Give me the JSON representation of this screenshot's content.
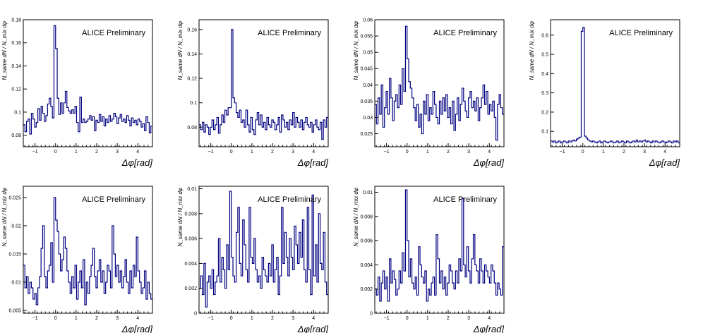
{
  "chart_data": [
    {
      "type": "line",
      "panel": 1,
      "annotation": "ALICE Preliminary",
      "xlabel": "Δφ[rad]",
      "ylabel": "N_same dN / N_mix dφ",
      "xlim": [
        -1.5708,
        4.7124
      ],
      "ylim": [
        0.07,
        0.18
      ],
      "xticks": [
        "−1",
        "0",
        "1",
        "2",
        "3",
        "4"
      ],
      "yticks": [
        0.08,
        0.1,
        0.12,
        0.14,
        0.16,
        0.18
      ],
      "ytick_labels": [
        "0.08",
        "0.1",
        "0.12",
        "0.14",
        "0.16",
        "0.18"
      ],
      "values": [
        0.089,
        0.083,
        0.092,
        0.094,
        0.081,
        0.099,
        0.094,
        0.087,
        0.091,
        0.103,
        0.093,
        0.105,
        0.099,
        0.092,
        0.097,
        0.107,
        0.112,
        0.105,
        0.095,
        0.175,
        0.155,
        0.112,
        0.098,
        0.108,
        0.099,
        0.108,
        0.118,
        0.104,
        0.101,
        0.099,
        0.102,
        0.099,
        0.105,
        0.091,
        0.083,
        0.113,
        0.091,
        0.094,
        0.091,
        0.092,
        0.094,
        0.097,
        0.093,
        0.096,
        0.084,
        0.093,
        0.091,
        0.098,
        0.092,
        0.096,
        0.088,
        0.094,
        0.091,
        0.097,
        0.092,
        0.094,
        0.099,
        0.096,
        0.09,
        0.095,
        0.098,
        0.092,
        0.094,
        0.091,
        0.097,
        0.093,
        0.088,
        0.095,
        0.091,
        0.093,
        0.089,
        0.094,
        0.092,
        0.087,
        0.09,
        0.084,
        0.096,
        0.091,
        0.082,
        0.088
      ]
    },
    {
      "type": "line",
      "panel": 2,
      "annotation": "ALICE Preliminary",
      "xlabel": "Δφ[rad]",
      "ylabel": "N_same dN / N_mix dφ",
      "xlim": [
        -1.5708,
        4.7124
      ],
      "ylim": [
        0.064,
        0.168
      ],
      "xticks": [
        "−1",
        "0",
        "1",
        "2",
        "3",
        "4"
      ],
      "yticks": [
        0.08,
        0.1,
        0.12,
        0.14,
        0.16
      ],
      "ytick_labels": [
        "0.08",
        "0.1",
        "0.12",
        "0.14",
        "0.16"
      ],
      "values": [
        0.082,
        0.078,
        0.084,
        0.076,
        0.082,
        0.08,
        0.074,
        0.08,
        0.086,
        0.078,
        0.082,
        0.088,
        0.075,
        0.082,
        0.09,
        0.084,
        0.094,
        0.09,
        0.096,
        0.096,
        0.16,
        0.104,
        0.1,
        0.092,
        0.088,
        0.094,
        0.084,
        0.086,
        0.08,
        0.094,
        0.082,
        0.076,
        0.088,
        0.078,
        0.074,
        0.086,
        0.092,
        0.082,
        0.09,
        0.08,
        0.084,
        0.078,
        0.088,
        0.082,
        0.08,
        0.086,
        0.084,
        0.078,
        0.082,
        0.088,
        0.076,
        0.09,
        0.086,
        0.08,
        0.084,
        0.078,
        0.086,
        0.082,
        0.092,
        0.08,
        0.088,
        0.084,
        0.08,
        0.086,
        0.078,
        0.084,
        0.088,
        0.082,
        0.08,
        0.084,
        0.076,
        0.082,
        0.086,
        0.08,
        0.078,
        0.084,
        0.07,
        0.086,
        0.08,
        0.088
      ]
    },
    {
      "type": "line",
      "panel": 3,
      "annotation": "ALICE Preliminary",
      "xlabel": "Δφ[rad]",
      "ylabel": "N_same dN / N_mix dφ",
      "xlim": [
        -1.5708,
        4.7124
      ],
      "ylim": [
        0.021,
        0.06
      ],
      "xticks": [
        "−1",
        "0",
        "1",
        "2",
        "3",
        "4"
      ],
      "yticks": [
        0.025,
        0.03,
        0.035,
        0.04,
        0.045,
        0.05,
        0.055,
        0.06
      ],
      "ytick_labels": [
        "0.025",
        "0.03",
        "0.035",
        "0.04",
        "0.045",
        "0.05",
        "0.055",
        "0.06"
      ],
      "values": [
        0.034,
        0.028,
        0.036,
        0.031,
        0.04,
        0.027,
        0.033,
        0.038,
        0.031,
        0.042,
        0.036,
        0.029,
        0.035,
        0.037,
        0.033,
        0.04,
        0.034,
        0.045,
        0.038,
        0.058,
        0.048,
        0.041,
        0.039,
        0.036,
        0.033,
        0.029,
        0.034,
        0.027,
        0.031,
        0.025,
        0.035,
        0.031,
        0.037,
        0.029,
        0.033,
        0.031,
        0.038,
        0.034,
        0.03,
        0.028,
        0.035,
        0.031,
        0.036,
        0.032,
        0.037,
        0.03,
        0.033,
        0.028,
        0.035,
        0.026,
        0.031,
        0.036,
        0.029,
        0.034,
        0.039,
        0.035,
        0.032,
        0.03,
        0.036,
        0.038,
        0.033,
        0.035,
        0.032,
        0.036,
        0.029,
        0.033,
        0.036,
        0.04,
        0.034,
        0.038,
        0.031,
        0.034,
        0.032,
        0.035,
        0.03,
        0.023,
        0.034,
        0.037,
        0.033,
        0.031
      ]
    },
    {
      "type": "line",
      "panel": 4,
      "annotation": "ALICE Preliminary",
      "xlabel": "Δφ[rad]",
      "ylabel": "N_same dN / N_mix dφ",
      "xlim": [
        -1.5708,
        4.7124
      ],
      "ylim": [
        0.02,
        0.68
      ],
      "xticks": [
        "−1",
        "0",
        "1",
        "2",
        "3",
        "4"
      ],
      "yticks": [
        0.1,
        0.2,
        0.3,
        0.4,
        0.5,
        0.6
      ],
      "ytick_labels": [
        "0.1",
        "0.2",
        "0.3",
        "0.4",
        "0.5",
        "0.6"
      ],
      "values": [
        0.05,
        0.045,
        0.05,
        0.04,
        0.045,
        0.05,
        0.04,
        0.045,
        0.05,
        0.045,
        0.04,
        0.05,
        0.045,
        0.05,
        0.055,
        0.05,
        0.06,
        0.065,
        0.07,
        0.62,
        0.64,
        0.075,
        0.065,
        0.055,
        0.05,
        0.045,
        0.05,
        0.045,
        0.04,
        0.045,
        0.05,
        0.04,
        0.045,
        0.05,
        0.045,
        0.04,
        0.045,
        0.05,
        0.045,
        0.04,
        0.045,
        0.05,
        0.04,
        0.045,
        0.05,
        0.045,
        0.04,
        0.05,
        0.045,
        0.04,
        0.045,
        0.05,
        0.045,
        0.055,
        0.045,
        0.05,
        0.045,
        0.05,
        0.055,
        0.045,
        0.05,
        0.045,
        0.04,
        0.05,
        0.045,
        0.05,
        0.045,
        0.04,
        0.045,
        0.05,
        0.045,
        0.04,
        0.045,
        0.05,
        0.045,
        0.04,
        0.05,
        0.045,
        0.05,
        0.04
      ]
    },
    {
      "type": "line",
      "panel": 5,
      "annotation": "ALICE Preliminary",
      "xlabel": "Δφ[rad]",
      "ylabel": "N_same dN / N_mix dφ",
      "xlim": [
        -1.5708,
        4.7124
      ],
      "ylim": [
        0.0045,
        0.027
      ],
      "xticks": [
        "−1",
        "0",
        "1",
        "2",
        "3",
        "4"
      ],
      "yticks": [
        0.005,
        0.01,
        0.015,
        0.02,
        0.025
      ],
      "ytick_labels": [
        "0.005",
        "0.01",
        "0.015",
        "0.02",
        "0.025"
      ],
      "values": [
        0.013,
        0.009,
        0.011,
        0.008,
        0.01,
        0.009,
        0.007,
        0.008,
        0.006,
        0.009,
        0.011,
        0.016,
        0.02,
        0.011,
        0.009,
        0.012,
        0.013,
        0.017,
        0.01,
        0.025,
        0.021,
        0.019,
        0.015,
        0.012,
        0.014,
        0.018,
        0.016,
        0.012,
        0.01,
        0.008,
        0.011,
        0.009,
        0.013,
        0.007,
        0.01,
        0.012,
        0.009,
        0.014,
        0.006,
        0.01,
        0.008,
        0.011,
        0.013,
        0.016,
        0.011,
        0.009,
        0.012,
        0.014,
        0.01,
        0.012,
        0.008,
        0.01,
        0.013,
        0.012,
        0.009,
        0.02,
        0.015,
        0.011,
        0.013,
        0.01,
        0.012,
        0.009,
        0.011,
        0.014,
        0.01,
        0.008,
        0.012,
        0.009,
        0.013,
        0.011,
        0.018,
        0.012,
        0.01,
        0.008,
        0.009,
        0.012,
        0.007,
        0.01,
        0.008,
        0.007
      ]
    },
    {
      "type": "line",
      "panel": 6,
      "annotation": "ALICE Preliminary",
      "xlabel": "Δφ[rad]",
      "ylabel": "N_same dN / N_mix dφ",
      "xlim": [
        -1.5708,
        4.7124
      ],
      "ylim": [
        0,
        0.0102
      ],
      "xticks": [
        "−1",
        "0",
        "1",
        "2",
        "3",
        "4"
      ],
      "yticks": [
        0,
        0.002,
        0.004,
        0.006,
        0.008,
        0.01
      ],
      "ytick_labels": [
        "0",
        "0.002",
        "0.004",
        "0.006",
        "0.008",
        "0.01"
      ],
      "values": [
        0.002,
        0.003,
        0.0015,
        0.004,
        0.0005,
        0.0025,
        0.003,
        0.002,
        0.0035,
        0.0015,
        0.0025,
        0.003,
        0.006,
        0.0025,
        0.0045,
        0.0035,
        0.002,
        0.0055,
        0.0035,
        0.0098,
        0.0045,
        0.003,
        0.0025,
        0.0065,
        0.0085,
        0.004,
        0.003,
        0.0075,
        0.0055,
        0.0035,
        0.0025,
        0.0085,
        0.0045,
        0.004,
        0.006,
        0.0035,
        0.0025,
        0.003,
        0.002,
        0.0045,
        0.0035,
        0.003,
        0.0025,
        0.004,
        0.003,
        0.0055,
        0.0025,
        0.0035,
        0.0045,
        0.0015,
        0.003,
        0.0085,
        0.004,
        0.0065,
        0.0045,
        0.003,
        0.006,
        0.0045,
        0.0035,
        0.007,
        0.0055,
        0.004,
        0.0065,
        0.0045,
        0.0075,
        0.0035,
        0.0025,
        0.0085,
        0.0035,
        0.0015,
        0.0095,
        0.003,
        0.0055,
        0.0025,
        0.008,
        0.004,
        0.0035,
        0.0065,
        0.0025,
        0.0015
      ]
    },
    {
      "type": "line",
      "panel": 7,
      "annotation": "ALICE Preliminary",
      "xlabel": "Δφ[rad]",
      "ylabel": "N_same dN / N_mix dφ",
      "xlim": [
        -1.5708,
        4.7124
      ],
      "ylim": [
        0,
        0.0105
      ],
      "xticks": [
        "−1",
        "0",
        "1",
        "2",
        "3",
        "4"
      ],
      "yticks": [
        0,
        0.002,
        0.004,
        0.006,
        0.008,
        0.01
      ],
      "ytick_labels": [
        "0",
        "0.002",
        "0.004",
        "0.006",
        "0.008",
        "0.01"
      ],
      "values": [
        0.002,
        0.0015,
        0.003,
        0.001,
        0.0025,
        0.0035,
        0.002,
        0.003,
        0.001,
        0.0045,
        0.0025,
        0.0035,
        0.0028,
        0.0015,
        0.002,
        0.0035,
        0.0025,
        0.005,
        0.0035,
        0.0102,
        0.006,
        0.003,
        0.0045,
        0.0025,
        0.002,
        0.003,
        0.0015,
        0.0055,
        0.004,
        0.003,
        0.0025,
        0.0035,
        0.001,
        0.002,
        0.0015,
        0.0025,
        0.003,
        0.0015,
        0.0065,
        0.0045,
        0.0025,
        0.0035,
        0.002,
        0.003,
        0.0015,
        0.0025,
        0.004,
        0.0035,
        0.0025,
        0.002,
        0.0035,
        0.0025,
        0.0045,
        0.0035,
        0.0095,
        0.004,
        0.003,
        0.0055,
        0.0035,
        0.0025,
        0.0045,
        0.0065,
        0.004,
        0.0035,
        0.0025,
        0.0045,
        0.0035,
        0.0025,
        0.004,
        0.0035,
        0.003,
        0.0025,
        0.004,
        0.0035,
        0.0025,
        0.0015,
        0.0025,
        0.002,
        0.0015,
        0.0055
      ]
    }
  ]
}
